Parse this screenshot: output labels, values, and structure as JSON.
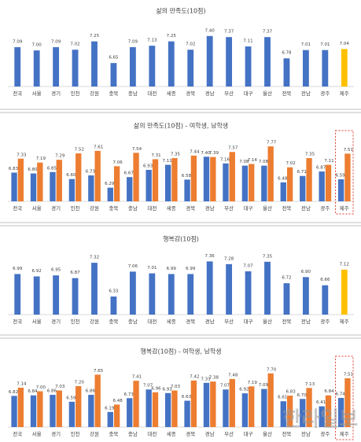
{
  "chart_data": [
    {
      "type": "bar",
      "title": "삶의 만족도(10점)",
      "categories": [
        "전국",
        "서울",
        "경기",
        "인천",
        "강원",
        "충북",
        "충남",
        "대전",
        "세종",
        "경북",
        "경남",
        "부산",
        "대구",
        "울산",
        "전북",
        "전남",
        "광주",
        "제주"
      ],
      "values": [
        7.09,
        7.0,
        7.09,
        7.02,
        7.25,
        6.65,
        7.09,
        7.13,
        7.25,
        7.02,
        7.4,
        7.37,
        7.11,
        7.37,
        6.78,
        7.01,
        7.01,
        7.04
      ],
      "value_labels": [
        "7.09",
        "7.00",
        "7.09",
        "7.02",
        "7.25",
        "6.65",
        "7.09",
        "7.13",
        "7.25",
        "7.02",
        "7.40",
        "7.37",
        "7.11",
        "7.37",
        "6.78",
        "7.01",
        "7.01",
        "7.04"
      ],
      "colors": [
        "#4472c4",
        "#4472c4",
        "#4472c4",
        "#4472c4",
        "#4472c4",
        "#4472c4",
        "#4472c4",
        "#4472c4",
        "#4472c4",
        "#4472c4",
        "#4472c4",
        "#4472c4",
        "#4472c4",
        "#4472c4",
        "#4472c4",
        "#4472c4",
        "#4472c4",
        "#ffc000"
      ],
      "ylim": [
        6,
        7.7
      ]
    },
    {
      "type": "grouped_bar",
      "title": "삶의 만족도(10점) - 여학생, 남학생",
      "categories": [
        "전국",
        "서울",
        "경기",
        "인천",
        "강원",
        "충북",
        "충남",
        "대전",
        "세종",
        "경북",
        "경남",
        "부산",
        "대구",
        "울산",
        "전북",
        "전남",
        "광주",
        "제주"
      ],
      "series": [
        {
          "color": "#4472c4",
          "values": [
            6.83,
            6.8,
            6.85,
            6.6,
            6.73,
            6.29,
            6.67,
            6.93,
            7.11,
            6.58,
            7.4,
            7.16,
            7.08,
            7.08,
            6.48,
            6.71,
            6.87,
            6.59
          ],
          "value_labels": [
            "6.83",
            "6.80",
            "6.85",
            "6.60",
            "6.73",
            "6.29",
            "6.67",
            "6.93",
            "7.11",
            "6.58",
            "7.40",
            "7.16",
            "7.08",
            "7.08",
            "6.48",
            "6.71",
            "6.87",
            "6.59"
          ]
        },
        {
          "color": "#ed7d31",
          "values": [
            7.33,
            7.19,
            7.29,
            7.52,
            7.61,
            7.06,
            7.54,
            7.31,
            7.35,
            7.44,
            7.39,
            7.57,
            7.14,
            7.77,
            7.02,
            7.35,
            7.11,
            7.51
          ],
          "value_labels": [
            "7.33",
            "7.19",
            "7.29",
            "7.52",
            "7.61",
            "7.06",
            "7.54",
            "7.31",
            "7.35",
            "7.44",
            "7.39",
            "7.57",
            "7.14",
            "7.77",
            "7.02",
            "7.35",
            "7.11",
            "7.51"
          ]
        }
      ],
      "ylim": [
        5.8,
        8.0
      ],
      "highlight_last": true
    },
    {
      "type": "bar",
      "title": "행복감(10점)",
      "categories": [
        "전국",
        "서울",
        "경기",
        "인천",
        "강원",
        "충북",
        "충남",
        "대전",
        "세종",
        "경북",
        "경남",
        "부산",
        "대구",
        "울산",
        "전북",
        "전남",
        "광주",
        "제주"
      ],
      "values": [
        6.99,
        6.92,
        6.95,
        6.87,
        7.32,
        6.33,
        7.06,
        7.01,
        6.99,
        6.99,
        7.36,
        7.28,
        7.07,
        7.35,
        6.72,
        6.9,
        6.66,
        7.12
      ],
      "value_labels": [
        "6.99",
        "6.92",
        "6.95",
        "6.87",
        "7.32",
        "6.33",
        "7.06",
        "7.01",
        "6.99",
        "6.99",
        "7.36",
        "7.28",
        "7.07",
        "7.35",
        "6.72",
        "6.90",
        "6.66",
        "7.12"
      ],
      "colors": [
        "#4472c4",
        "#4472c4",
        "#4472c4",
        "#4472c4",
        "#4472c4",
        "#4472c4",
        "#4472c4",
        "#4472c4",
        "#4472c4",
        "#4472c4",
        "#4472c4",
        "#4472c4",
        "#4472c4",
        "#4472c4",
        "#4472c4",
        "#4472c4",
        "#4472c4",
        "#ffc000"
      ],
      "ylim": [
        5.8,
        7.6
      ]
    },
    {
      "type": "grouped_bar",
      "title": "행복감(10점) - 여학생, 남학생",
      "categories": [
        "전국",
        "서울",
        "경기",
        "인천",
        "강원",
        "충북",
        "충남",
        "대전",
        "세종",
        "경북",
        "경남",
        "부산",
        "대구",
        "울산",
        "전북",
        "전남",
        "광주",
        "제주"
      ],
      "series": [
        {
          "color": "#4472c4",
          "values": [
            6.82,
            6.84,
            6.86,
            6.59,
            6.86,
            6.19,
            6.73,
            7.07,
            6.93,
            6.63,
            7.33,
            7.07,
            6.92,
            7.09,
            6.61,
            6.7,
            6.41,
            6.74
          ],
          "value_labels": [
            "6.82",
            "6.84",
            "6.86",
            "6.59",
            "6.86",
            "6.19",
            "6.73",
            "7.07",
            "6.93",
            "6.63",
            "7.33",
            "7.07",
            "6.92",
            "7.09",
            "6.61",
            "6.70",
            "6.41",
            "6.74"
          ]
        },
        {
          "color": "#ed7d31",
          "values": [
            7.14,
            7.0,
            7.03,
            7.2,
            7.65,
            6.48,
            7.41,
            6.96,
            7.03,
            7.42,
            7.38,
            7.48,
            7.19,
            7.7,
            6.83,
            7.13,
            6.84,
            7.51
          ],
          "value_labels": [
            "7.14",
            "7.00",
            "7.03",
            "7.20",
            "7.65",
            "6.48",
            "7.41",
            "6.96",
            "7.03",
            "7.42",
            "7.38",
            "7.48",
            "7.19",
            "7.70",
            "6.83",
            "7.13",
            "6.84",
            "7.51"
          ]
        }
      ],
      "ylim": [
        5.6,
        8.0
      ],
      "highlight_last": true
    }
  ],
  "watermark": "한라일보"
}
